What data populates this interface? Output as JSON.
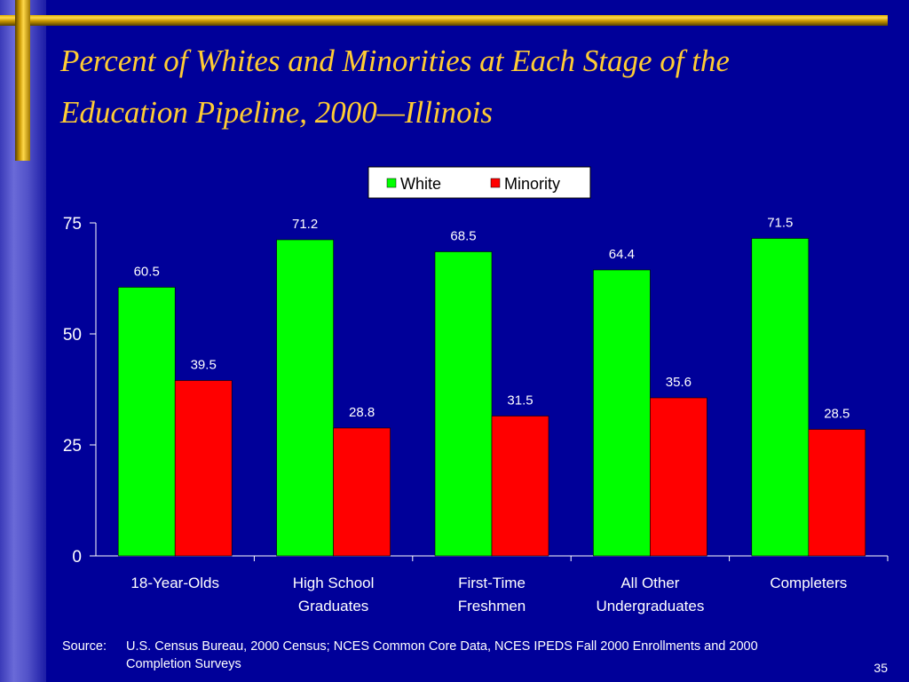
{
  "slide": {
    "title": "Percent of Whites and Minorities at Each Stage of the Education Pipeline, 2000—Illinois",
    "source_label": "Source:",
    "source_text": "U.S. Census Bureau, 2000 Census; NCES Common Core Data, NCES IPEDS Fall 2000 Enrollments and 2000 Completion Surveys",
    "page_number": "35"
  },
  "colors": {
    "background": "#000099",
    "title": "#ffcc33",
    "white_series": "#00ff00",
    "minority_series": "#ff0000"
  },
  "chart_data": {
    "type": "bar",
    "categories": [
      [
        "18-Year-Olds"
      ],
      [
        "High School",
        "Graduates"
      ],
      [
        "First-Time",
        "Freshmen"
      ],
      [
        "All Other",
        "Undergraduates"
      ],
      [
        "Completers"
      ]
    ],
    "series": [
      {
        "name": "White",
        "color": "#00ff00",
        "values": [
          60.5,
          71.2,
          68.5,
          64.4,
          71.5
        ]
      },
      {
        "name": "Minority",
        "color": "#ff0000",
        "values": [
          39.5,
          28.8,
          31.5,
          35.6,
          28.5
        ]
      }
    ],
    "yticks": [
      0,
      25,
      50,
      75
    ],
    "ylim": [
      0,
      75
    ],
    "legend_position": "top-center",
    "grid": false,
    "data_labels": true
  }
}
